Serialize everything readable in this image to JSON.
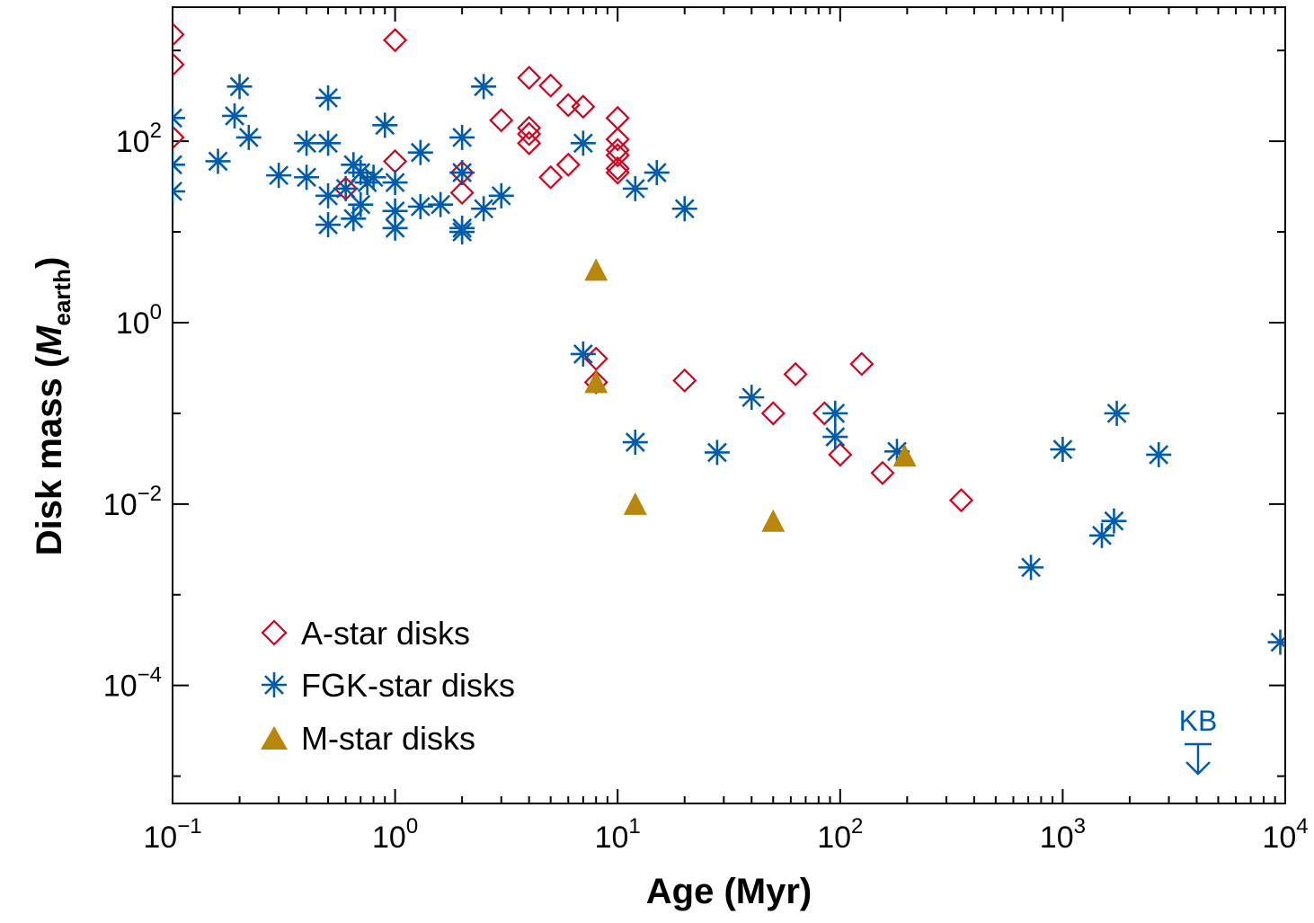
{
  "chart_data": {
    "type": "scatter",
    "title": "",
    "xlabel": "Age (Myr)",
    "ylabel_prefix": "Disk mass (",
    "ylabel_symbol": "M",
    "ylabel_subscript": "earth",
    "ylabel_suffix": ")",
    "x_scale": "log",
    "y_scale": "log",
    "xlim": [
      0.1,
      10000
    ],
    "ylim": [
      5e-06,
      3000
    ],
    "x_tick_labels": [
      {
        "value": 0.1,
        "base": "10",
        "exp": "−1"
      },
      {
        "value": 1,
        "base": "10",
        "exp": "0"
      },
      {
        "value": 10,
        "base": "10",
        "exp": "1"
      },
      {
        "value": 100,
        "base": "10",
        "exp": "2"
      },
      {
        "value": 1000,
        "base": "10",
        "exp": "3"
      },
      {
        "value": 10000,
        "base": "10",
        "exp": "4"
      }
    ],
    "y_tick_labels": [
      {
        "value": 100,
        "base": "10",
        "exp": "2"
      },
      {
        "value": 1,
        "base": "10",
        "exp": "0"
      },
      {
        "value": 0.01,
        "base": "10",
        "exp": "−2"
      },
      {
        "value": 0.0001,
        "base": "10",
        "exp": "−4"
      }
    ],
    "legend_position": "bottom-left",
    "grid": false,
    "colors": {
      "a_star": "#d6001c",
      "fgk_star": "#005bab",
      "m_star": "#b8860b",
      "axis": "#000000"
    },
    "series": [
      {
        "name": "A-star disks",
        "marker": "diamond-open",
        "points": [
          [
            0.1,
            1500
          ],
          [
            0.1,
            700
          ],
          [
            0.1,
            110
          ],
          [
            1,
            1300
          ],
          [
            4,
            500
          ],
          [
            5,
            410
          ],
          [
            6,
            250
          ],
          [
            7,
            240
          ],
          [
            10,
            180
          ],
          [
            3,
            170
          ],
          [
            4,
            140
          ],
          [
            4,
            120
          ],
          [
            4,
            95
          ],
          [
            10,
            105
          ],
          [
            10,
            80
          ],
          [
            10,
            70
          ],
          [
            10,
            50
          ],
          [
            10,
            45
          ],
          [
            6,
            55
          ],
          [
            5,
            40
          ],
          [
            2,
            45
          ],
          [
            2,
            27
          ],
          [
            1,
            60
          ],
          [
            0.6,
            30
          ],
          [
            8,
            0.4
          ],
          [
            8,
            0.22
          ],
          [
            20,
            0.23
          ],
          [
            50,
            0.1
          ],
          [
            63,
            0.27
          ],
          [
            85,
            0.1
          ],
          [
            125,
            0.35
          ],
          [
            100,
            0.035
          ],
          [
            155,
            0.022
          ],
          [
            350,
            0.011
          ]
        ]
      },
      {
        "name": "FGK-star disks",
        "marker": "asterisk",
        "points": [
          [
            0.1,
            180
          ],
          [
            0.1,
            55
          ],
          [
            0.1,
            28
          ],
          [
            0.16,
            60
          ],
          [
            0.19,
            190
          ],
          [
            0.2,
            400
          ],
          [
            0.22,
            110
          ],
          [
            0.3,
            42
          ],
          [
            0.4,
            95
          ],
          [
            0.4,
            40
          ],
          [
            0.5,
            300
          ],
          [
            0.5,
            95
          ],
          [
            0.5,
            25
          ],
          [
            0.5,
            12
          ],
          [
            0.6,
            30
          ],
          [
            0.65,
            55
          ],
          [
            0.65,
            14
          ],
          [
            0.7,
            45
          ],
          [
            0.7,
            20
          ],
          [
            0.75,
            35
          ],
          [
            0.8,
            40
          ],
          [
            0.9,
            150
          ],
          [
            1,
            35
          ],
          [
            1,
            17
          ],
          [
            1,
            11
          ],
          [
            1.3,
            75
          ],
          [
            1.3,
            19
          ],
          [
            1.6,
            20
          ],
          [
            2,
            110
          ],
          [
            2,
            45
          ],
          [
            2,
            11
          ],
          [
            2,
            10
          ],
          [
            2.5,
            400
          ],
          [
            2.5,
            18
          ],
          [
            3,
            25
          ],
          [
            7,
            95
          ],
          [
            12,
            30
          ],
          [
            15,
            45
          ],
          [
            20,
            18
          ],
          [
            7,
            0.45
          ],
          [
            12,
            0.048
          ],
          [
            28,
            0.037
          ],
          [
            40,
            0.15
          ],
          [
            95,
            0.1
          ],
          [
            95,
            0.055
          ],
          [
            180,
            0.038
          ],
          [
            720,
            0.002
          ],
          [
            1000,
            0.04
          ],
          [
            1500,
            0.0045
          ],
          [
            1700,
            0.0065
          ],
          [
            1750,
            0.1
          ],
          [
            2700,
            0.035
          ],
          [
            9500,
            0.0003
          ]
        ]
      },
      {
        "name": "M-star disks",
        "marker": "triangle-filled",
        "points": [
          [
            8,
            3.8
          ],
          [
            8,
            0.22
          ],
          [
            12,
            0.01
          ],
          [
            50,
            0.0065
          ],
          [
            195,
            0.034
          ]
        ]
      }
    ],
    "annotations": [
      {
        "label": "KB",
        "x": 4500,
        "y": 8e-06,
        "arrow": "down",
        "color": "#005bab"
      }
    ]
  }
}
